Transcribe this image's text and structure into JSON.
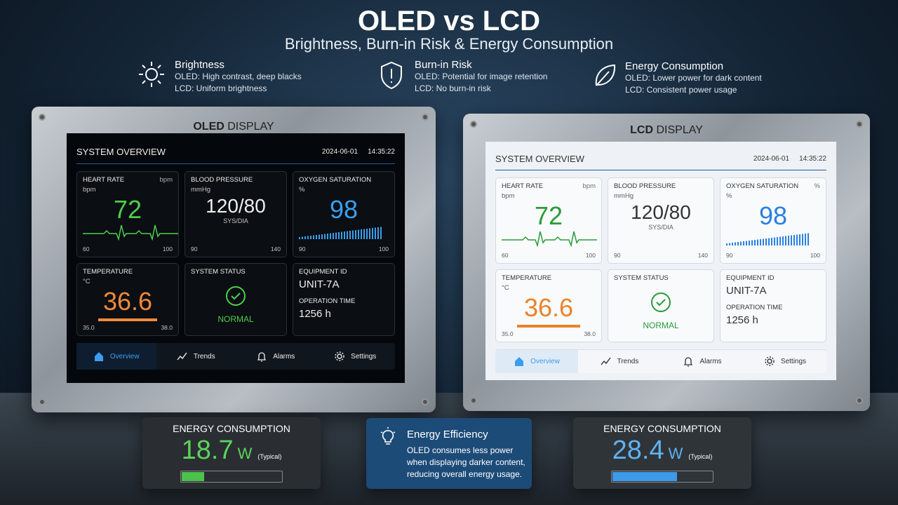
{
  "header": {
    "title": "OLED vs LCD",
    "subtitle": "Brightness, Burn-in Risk & Energy Consumption"
  },
  "features": [
    {
      "title": "Brightness",
      "lines": [
        "OLED: High contrast, deep blacks",
        "LCD: Uniform brightness"
      ]
    },
    {
      "title": "Burn-in Risk",
      "lines": [
        "OLED: Potential for image retention",
        "LCD: No burn-in risk"
      ]
    },
    {
      "title": "Energy Consumption",
      "lines": [
        "OLED: Lower power for dark content",
        "LCD: Consistent power usage"
      ]
    }
  ],
  "displays": [
    {
      "name": "OLED",
      "suffix": "DISPLAY",
      "screen": {
        "title": "SYSTEM OVERVIEW",
        "date": "2024-06-01",
        "time": "14:35:22",
        "heart_rate": {
          "label": "HEART RATE",
          "unit_corner": "bpm",
          "unit": "bpm",
          "value": "72",
          "min": "60",
          "max": "100"
        },
        "blood_pressure": {
          "label": "BLOOD PRESSURE",
          "unit": "mmHg",
          "value": "120/80",
          "sub": "SYS/DIA",
          "min": "90",
          "max": "140"
        },
        "oxygen": {
          "label": "OXYGEN SATURATION",
          "unit": "%",
          "value": "98",
          "min": "90",
          "max": "100"
        },
        "temperature": {
          "label": "TEMPERATURE",
          "unit": "°C",
          "value": "36.6",
          "min": "35.0",
          "max": "38.0"
        },
        "status": {
          "label": "SYSTEM STATUS",
          "value": "NORMAL"
        },
        "equipment": {
          "id_label": "EQUIPMENT ID",
          "id": "UNIT-7A",
          "time_label": "OPERATION TIME",
          "time": "1256 h"
        },
        "nav": [
          "Overview",
          "Trends",
          "Alarms",
          "Settings"
        ]
      }
    },
    {
      "name": "LCD",
      "suffix": "DISPLAY",
      "screen": {
        "title": "SYSTEM OVERVIEW",
        "date": "2024-06-01",
        "time": "14:35:22",
        "heart_rate": {
          "label": "HEART RATE",
          "unit_corner": "bpm",
          "unit": "bpm",
          "value": "72",
          "min": "60",
          "max": "100"
        },
        "blood_pressure": {
          "label": "BLOOD PRESSURE",
          "unit": "mmHg",
          "value": "120/80",
          "sub": "SYS/DIA",
          "min": "90",
          "max": "140"
        },
        "oxygen": {
          "label": "OXYGEN SATURATION",
          "unit_corner": "%",
          "unit": "%",
          "value": "98",
          "min": "90",
          "max": "100"
        },
        "temperature": {
          "label": "TEMPERATURE",
          "unit": "°C",
          "value": "36.6",
          "min": "35.0",
          "max": "38.0"
        },
        "status": {
          "label": "SYSTEM STATUS",
          "value": "NORMAL"
        },
        "equipment": {
          "id_label": "EQUIPMENT ID",
          "id": "UNIT-7A",
          "time_label": "OPERATION TIME",
          "time": "1256 h"
        },
        "nav": [
          "Overview",
          "Trends",
          "Alarms",
          "Settings"
        ]
      }
    }
  ],
  "energy_left": {
    "label": "ENERGY CONSUMPTION",
    "value": "18.7",
    "unit": "W",
    "note": "(Typical)"
  },
  "efficiency": {
    "title": "Energy Efficiency",
    "lines": [
      "OLED consumes less power",
      "when displaying darker content,",
      "reducing overall energy usage."
    ]
  },
  "energy_right": {
    "label": "ENERGY CONSUMPTION",
    "value": "28.4",
    "unit": "W",
    "note": "(Typical)"
  }
}
